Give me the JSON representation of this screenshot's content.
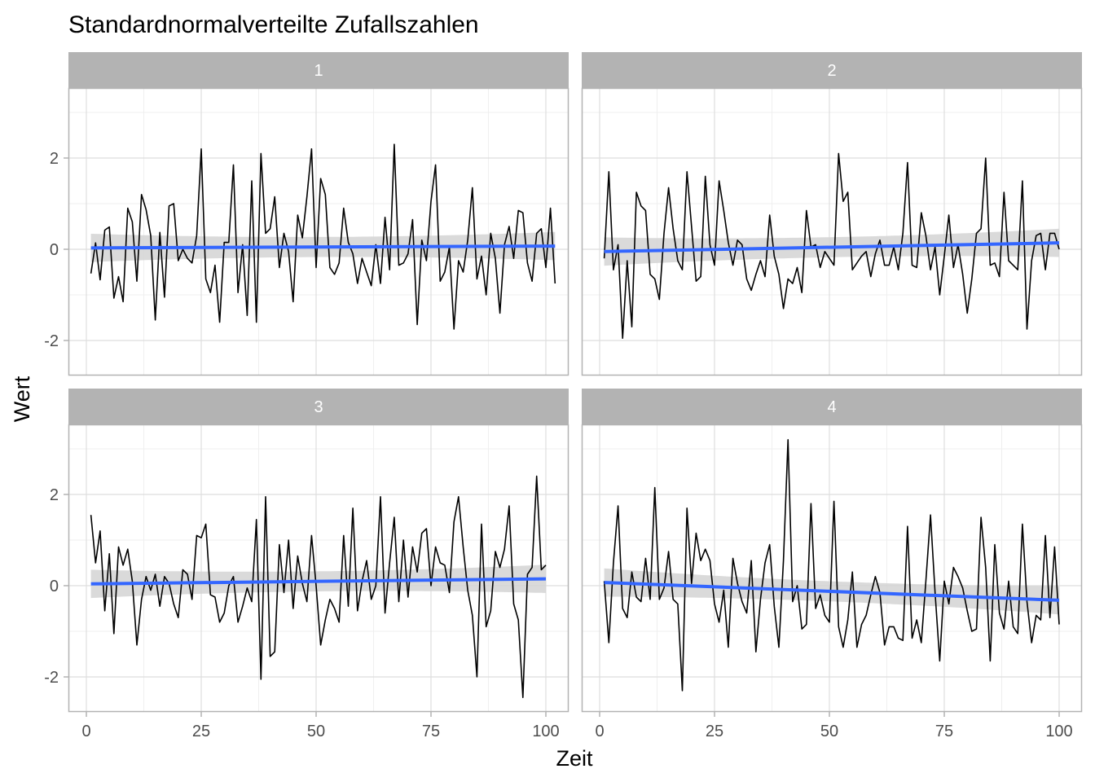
{
  "chart_data": {
    "type": "line",
    "title": "Standardnormalverteilte Zufallszahlen",
    "xlabel": "Zeit",
    "ylabel": "Wert",
    "xlim": [
      1,
      100
    ],
    "ylim": [
      -2.5,
      3.2
    ],
    "x_ticks": [
      0,
      25,
      50,
      75,
      100
    ],
    "y_ticks": [
      -2,
      0,
      2
    ],
    "y_tick_labels": [
      "-2",
      "0",
      "2"
    ],
    "grid": true,
    "facet_layout": "2x2",
    "colors": {
      "series_line": "#000000",
      "trend_line": "#3366FF",
      "confidence_band": "#d3d3d3",
      "strip_background": "#b3b3b3",
      "strip_text": "#ffffff",
      "panel_border": "#b3b3b3",
      "grid_major": "#dedede",
      "grid_minor": "#efefef"
    },
    "panels": [
      {
        "label": "1",
        "values": [
          -0.53,
          0.14,
          -0.67,
          0.42,
          0.49,
          -1.07,
          -0.6,
          -1.15,
          0.9,
          0.6,
          -0.7,
          1.2,
          0.87,
          0.3,
          -1.55,
          0.37,
          -1.05,
          0.95,
          1.0,
          -0.25,
          0.0,
          -0.2,
          -0.3,
          0.3,
          2.2,
          -0.65,
          -0.95,
          -0.35,
          -1.6,
          0.15,
          0.15,
          1.85,
          -0.95,
          0.1,
          -1.45,
          1.5,
          -1.6,
          2.1,
          0.35,
          0.45,
          1.15,
          -0.4,
          0.35,
          -0.05,
          -1.15,
          0.75,
          0.25,
          1.15,
          2.2,
          -0.4,
          1.55,
          1.2,
          -0.4,
          -0.55,
          -0.3,
          0.9,
          0.15,
          -0.1,
          -0.75,
          -0.2,
          -0.5,
          -0.8,
          0.1,
          -0.75,
          0.7,
          -0.45,
          2.3,
          -0.35,
          -0.3,
          -0.1,
          0.65,
          -1.65,
          0.2,
          -0.25,
          1.05,
          1.85,
          -0.7,
          -0.5,
          0.05,
          -1.75,
          -0.25,
          -0.5,
          0.2,
          1.35,
          -0.65,
          -0.15,
          -1.0,
          0.35,
          -0.2,
          -1.4,
          0.1,
          0.5,
          -0.2,
          0.85,
          0.8,
          -0.3,
          -0.7,
          0.35,
          0.45,
          -0.4,
          0.9,
          -0.75
        ],
        "trend": [
          0.03,
          0.07
        ],
        "band_halfwidth": [
          0.31,
          0.22,
          0.31
        ]
      },
      {
        "label": "2",
        "values": [
          -0.2,
          1.7,
          -0.45,
          0.1,
          -1.95,
          -0.25,
          -1.7,
          1.25,
          0.95,
          0.85,
          -0.55,
          -0.65,
          -1.1,
          0.35,
          1.35,
          0.45,
          -0.25,
          -0.45,
          1.7,
          0.5,
          -0.7,
          -0.6,
          1.6,
          0.1,
          -0.35,
          1.5,
          0.85,
          0.15,
          -0.35,
          0.2,
          0.1,
          -0.65,
          -0.9,
          -0.55,
          -0.25,
          -0.6,
          0.75,
          -0.15,
          -0.55,
          -1.3,
          -0.65,
          -0.75,
          -0.4,
          -0.95,
          0.85,
          0.05,
          0.1,
          -0.4,
          -0.05,
          -0.2,
          -0.35,
          2.1,
          1.05,
          1.25,
          -0.45,
          -0.3,
          -0.15,
          -0.05,
          -0.6,
          -0.1,
          0.2,
          -0.35,
          -0.35,
          0.05,
          -0.45,
          0.35,
          1.9,
          -0.35,
          -0.4,
          0.8,
          0.3,
          -0.45,
          0.05,
          -1.0,
          -0.15,
          0.75,
          -0.4,
          0.1,
          -0.55,
          -1.4,
          -0.65,
          0.35,
          0.45,
          2.0,
          -0.35,
          -0.3,
          -0.6,
          1.25,
          -0.25,
          -0.35,
          -0.45,
          1.5,
          -1.75,
          -0.25,
          0.3,
          0.35,
          -0.45,
          0.35,
          0.35,
          0.0
        ],
        "trend": [
          -0.05,
          0.14
        ],
        "band_halfwidth": [
          0.31,
          0.22,
          0.31
        ]
      },
      {
        "label": "3",
        "values": [
          1.55,
          0.5,
          1.2,
          -0.55,
          0.7,
          -1.05,
          0.85,
          0.45,
          0.8,
          0.1,
          -1.3,
          -0.3,
          0.2,
          -0.1,
          0.25,
          -0.45,
          0.2,
          0.05,
          -0.4,
          -0.7,
          0.35,
          0.25,
          -0.3,
          1.1,
          1.05,
          1.35,
          -0.2,
          -0.25,
          -0.8,
          -0.6,
          0.0,
          0.2,
          -0.8,
          -0.45,
          -0.05,
          -0.35,
          1.45,
          -2.05,
          1.95,
          -1.55,
          -1.45,
          0.9,
          -0.15,
          1.0,
          -0.5,
          0.65,
          0.05,
          -0.35,
          1.1,
          0.0,
          -1.3,
          -0.75,
          -0.3,
          -0.5,
          -0.8,
          1.1,
          -0.45,
          1.7,
          -0.55,
          0.1,
          0.55,
          -0.3,
          0.0,
          1.95,
          -0.6,
          0.5,
          1.5,
          -0.35,
          1.0,
          -0.25,
          0.85,
          0.3,
          1.15,
          1.25,
          0.0,
          0.85,
          0.5,
          0.45,
          -0.15,
          1.4,
          1.95,
          0.85,
          -0.1,
          -0.65,
          -2.0,
          1.35,
          -0.9,
          -0.55,
          0.75,
          0.4,
          0.8,
          1.75,
          -0.4,
          -0.75,
          -2.45,
          0.25,
          0.4,
          2.4,
          0.35,
          0.45
        ],
        "trend": [
          0.04,
          0.15
        ],
        "band_halfwidth": [
          0.31,
          0.22,
          0.31
        ]
      },
      {
        "label": "4",
        "values": [
          0.1,
          -1.25,
          0.5,
          1.75,
          -0.5,
          -0.7,
          0.3,
          -0.25,
          -0.35,
          0.6,
          -0.3,
          2.15,
          -0.3,
          -0.05,
          0.75,
          -0.3,
          -0.4,
          -2.3,
          1.7,
          0.05,
          1.15,
          0.55,
          0.8,
          0.55,
          -0.4,
          -0.8,
          -0.1,
          -1.35,
          0.6,
          0.05,
          -0.35,
          -0.6,
          0.55,
          -1.45,
          -0.3,
          0.5,
          0.9,
          -0.45,
          -1.35,
          0.55,
          3.2,
          -0.35,
          0.0,
          -0.95,
          -0.85,
          1.8,
          -0.5,
          -0.2,
          -0.65,
          -0.8,
          1.85,
          -0.9,
          -1.35,
          -0.75,
          0.3,
          -1.35,
          -0.85,
          -0.65,
          -0.2,
          0.2,
          -0.15,
          -1.3,
          -0.9,
          -0.9,
          -1.15,
          -1.2,
          1.3,
          -1.15,
          -0.75,
          -1.25,
          0.1,
          1.55,
          -0.15,
          -1.65,
          0.1,
          -0.4,
          0.4,
          0.2,
          -0.05,
          -0.55,
          -1.0,
          -0.95,
          1.5,
          0.4,
          -1.65,
          0.9,
          -0.6,
          -0.95,
          0.1,
          -0.9,
          -1.05,
          1.35,
          -0.35,
          -1.25,
          -0.65,
          -0.75,
          1.1,
          -0.7,
          0.85,
          -0.85
        ],
        "trend": [
          0.07,
          -0.32
        ],
        "band_halfwidth": [
          0.31,
          0.22,
          0.31
        ]
      }
    ]
  }
}
